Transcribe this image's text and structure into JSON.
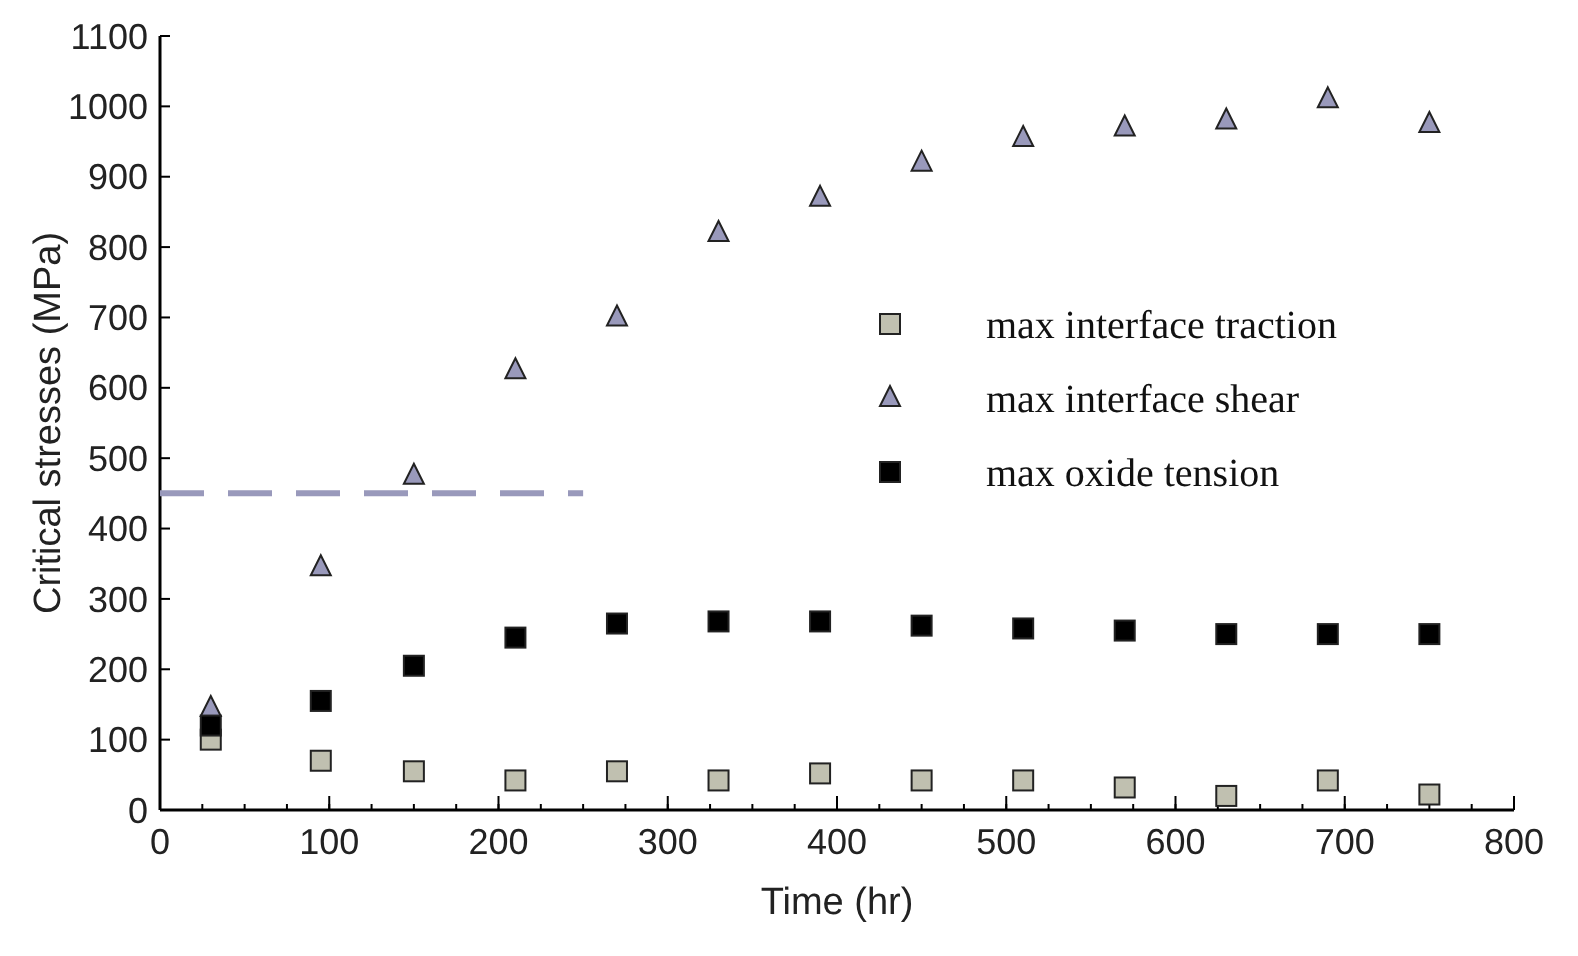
{
  "chart_data": {
    "type": "scatter",
    "xlabel": "Time (hr)",
    "ylabel": "Critical stresses (MPa)",
    "x": [
      30,
      95,
      150,
      210,
      270,
      330,
      390,
      450,
      510,
      570,
      630,
      690,
      750
    ],
    "series": [
      {
        "name": "max interface traction",
        "color": "#c0c0b0",
        "marker": "square",
        "values": [
          100,
          70,
          55,
          42,
          55,
          42,
          52,
          42,
          42,
          32,
          20,
          42,
          22
        ]
      },
      {
        "name": "max interface shear",
        "color": "#9999bb",
        "marker": "triangle",
        "values": [
          145,
          345,
          475,
          625,
          700,
          820,
          870,
          920,
          955,
          970,
          980,
          1010,
          975
        ]
      },
      {
        "name": "max oxide tension",
        "color": "#000000",
        "marker": "square",
        "values": [
          120,
          155,
          205,
          245,
          265,
          268,
          268,
          262,
          258,
          255,
          250,
          250,
          250
        ]
      },
      {
        "type": "line",
        "x": [
          0,
          250
        ],
        "color": "#9999bb",
        "line_style": "dashed",
        "marker": "none",
        "values": [
          450,
          450
        ]
      }
    ],
    "xlim": [
      0,
      800
    ],
    "xticks": [
      0,
      100,
      200,
      300,
      400,
      500,
      600,
      700,
      800
    ],
    "ylim": [
      0,
      1100
    ],
    "yticks": [
      0,
      100,
      200,
      300,
      400,
      500,
      600,
      700,
      800,
      900,
      1000,
      1100
    ],
    "grid": false,
    "legend": "right"
  }
}
